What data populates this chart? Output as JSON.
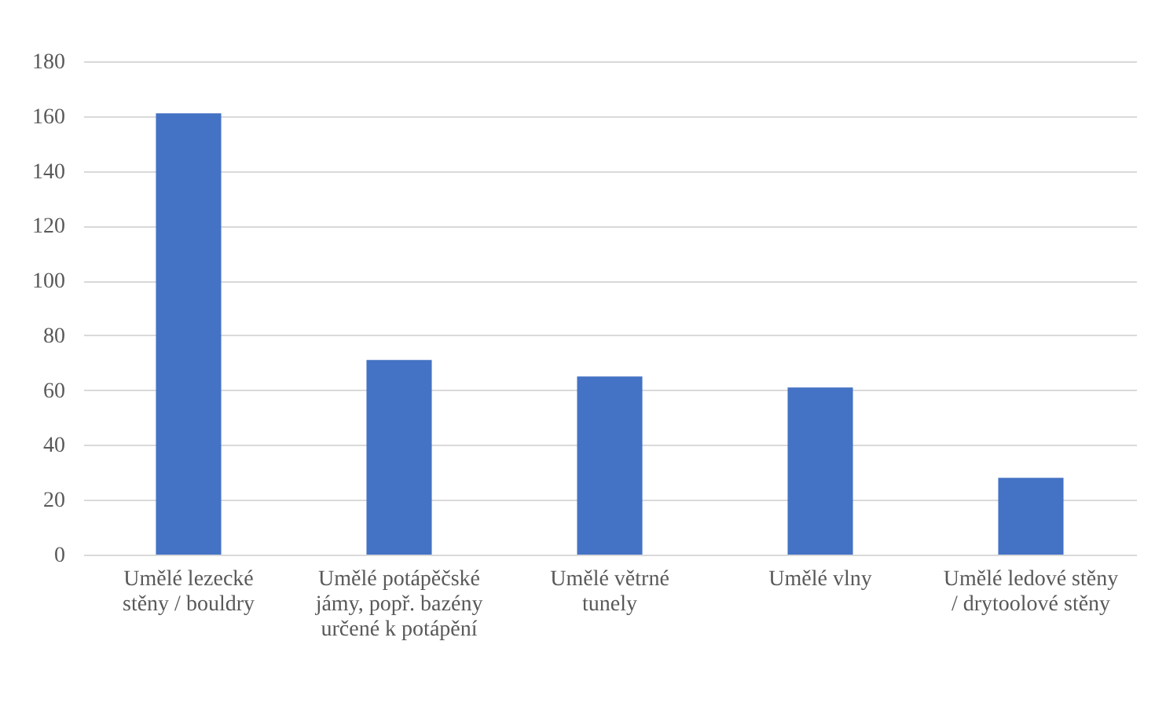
{
  "chart_data": {
    "type": "bar",
    "categories": [
      "Umělé lezecké stěny / bouldry",
      "Umělé potápěčské jámy, popř. bazény určené k potápění",
      "Umělé větrné tunely",
      "Umělé vlny",
      "Umělé ledové stěny / drytoolové stěny"
    ],
    "values": [
      161,
      71,
      65,
      61,
      28
    ],
    "color": "#4472c4",
    "ylim": [
      0,
      180
    ],
    "yticks": [
      0,
      20,
      40,
      60,
      80,
      100,
      120,
      140,
      160,
      180
    ],
    "grid": "y"
  }
}
